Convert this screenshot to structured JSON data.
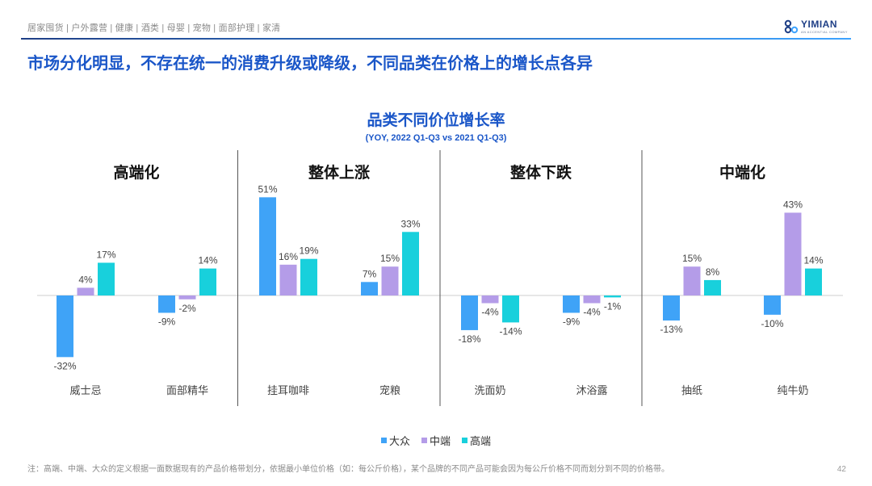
{
  "breadcrumb": "居家囤货 | 户外露营 | 健康 | 酒类 | 母婴 | 宠物 | 面部护理 | 家清",
  "logo": {
    "brand": "YIMIAN",
    "tagline": "AN ACCENTIAL COMPANY"
  },
  "headline": "市场分化明显，不存在统一的消费升级或降级，不同品类在价格上的增长点各异",
  "footnote": "注：高端、中端、大众的定义根据一面数据现有的产品价格带划分，依据最小单位价格（如：每公斤价格），某个品牌的不同产品可能会因为每公斤价格不同而划分到不同的价格带。",
  "page_number": "42",
  "colors": {
    "accent": "#1a56c8",
    "mass": "#3fa3f7",
    "mid": "#b49ce8",
    "high": "#18d0dc"
  },
  "chart_data": {
    "type": "bar",
    "title": "品类不同价位增长率",
    "subtitle": "(YOY, 2022 Q1-Q3 vs 2021 Q1-Q3)",
    "unit": "%",
    "series_names": [
      "大众",
      "中端",
      "高端"
    ],
    "sections": [
      {
        "label": "高端化",
        "categories": [
          "威士忌",
          "面部精华"
        ]
      },
      {
        "label": "整体上涨",
        "categories": [
          "挂耳咖啡",
          "宠粮"
        ]
      },
      {
        "label": "整体下跌",
        "categories": [
          "洗面奶",
          "沐浴露"
        ]
      },
      {
        "label": "中端化",
        "categories": [
          "抽纸",
          "纯牛奶"
        ]
      }
    ],
    "categories": [
      "威士忌",
      "面部精华",
      "挂耳咖啡",
      "宠粮",
      "洗面奶",
      "沐浴露",
      "抽纸",
      "纯牛奶"
    ],
    "series": [
      {
        "name": "大众",
        "values": [
          -32,
          -9,
          51,
          7,
          -18,
          -9,
          -13,
          -10
        ]
      },
      {
        "name": "中端",
        "values": [
          4,
          -2,
          16,
          15,
          -4,
          -4,
          15,
          43
        ]
      },
      {
        "name": "高端",
        "values": [
          17,
          14,
          19,
          33,
          -14,
          -1,
          8,
          14
        ]
      }
    ],
    "legend_position": "bottom",
    "grid": false
  }
}
